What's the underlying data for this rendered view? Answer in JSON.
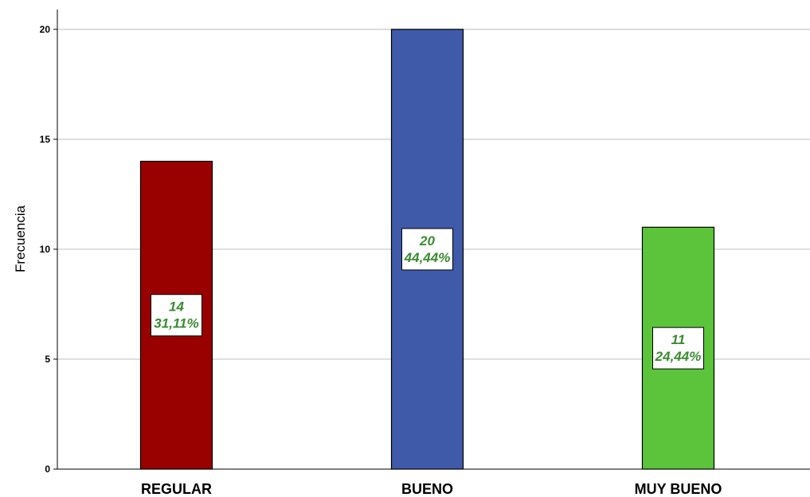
{
  "chart_data": {
    "type": "bar",
    "categories": [
      "REGULAR",
      "BUENO",
      "MUY BUENO"
    ],
    "values": [
      14,
      20,
      11
    ],
    "percent_labels": [
      "31,11%",
      "44,44%",
      "24,44%"
    ],
    "bar_colors": [
      "#990000",
      "#3f5aa9",
      "#5cc43a"
    ],
    "data_label_color": "#3a8a30",
    "title": "",
    "xlabel": "",
    "ylabel": "Frecuencia",
    "ylim": [
      0,
      20.9
    ],
    "yticks": [
      "0",
      "5",
      "10",
      "15",
      "20"
    ],
    "grid": true,
    "legend": "none"
  }
}
